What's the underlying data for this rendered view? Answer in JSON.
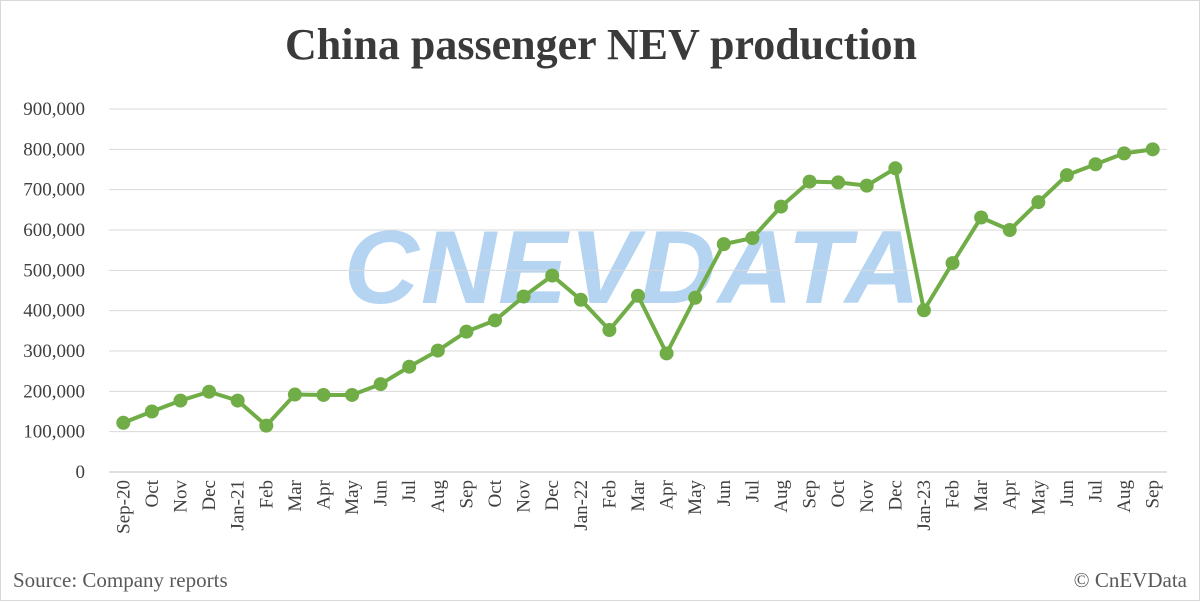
{
  "chart_data": {
    "type": "line",
    "title": "China passenger NEV production",
    "xlabel": "",
    "ylabel": "",
    "ylim": [
      0,
      900000
    ],
    "yticks": [
      "0",
      "100,000",
      "200,000",
      "300,000",
      "400,000",
      "500,000",
      "600,000",
      "700,000",
      "800,000",
      "900,000"
    ],
    "categories": [
      "Sep-20",
      "Oct",
      "Nov",
      "Dec",
      "Jan-21",
      "Feb",
      "Mar",
      "Apr",
      "May",
      "Jun",
      "Jul",
      "Aug",
      "Sep",
      "Oct",
      "Nov",
      "Dec",
      "Jan-22",
      "Feb",
      "Mar",
      "Apr",
      "May",
      "Jun",
      "Jul",
      "Aug",
      "Sep",
      "Oct",
      "Nov",
      "Dec",
      "Jan-23",
      "Feb",
      "Mar",
      "Apr",
      "May",
      "Jun",
      "Jul",
      "Aug",
      "Sep"
    ],
    "series": [
      {
        "color": "#70ad47",
        "values": [
          122000,
          150000,
          177000,
          199000,
          177000,
          115000,
          192000,
          191000,
          191000,
          218000,
          261000,
          301000,
          348000,
          376000,
          435000,
          487000,
          427000,
          352000,
          437000,
          294000,
          432000,
          565000,
          580000,
          658000,
          720000,
          718000,
          710000,
          753000,
          401000,
          518000,
          631000,
          600000,
          669000,
          736000,
          763000,
          790000,
          800000
        ]
      }
    ],
    "grid": true,
    "legend": "none"
  },
  "footer": {
    "source": "Source: Company reports",
    "credit": "© CnEVData"
  },
  "watermark": "CNEVDATA"
}
